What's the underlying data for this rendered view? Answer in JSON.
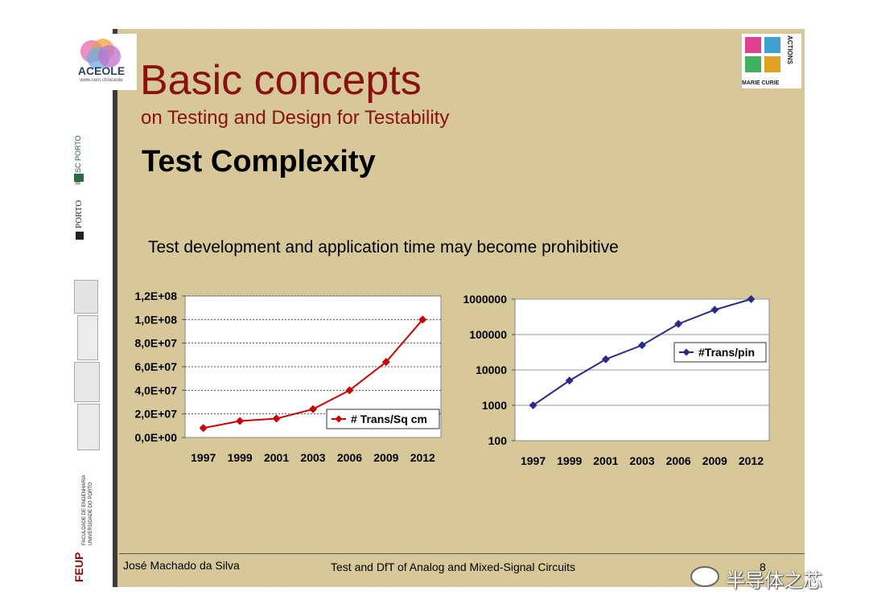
{
  "slide": {
    "title": "Basic concepts",
    "subtitle": "on Testing and Design for Testability",
    "heading": "Test Complexity",
    "body_text": "Test development and application time may become prohibitive"
  },
  "logos": {
    "aceole_name": "ACEOLE",
    "aceole_url": "www.cern.ch/aceole",
    "inesc": "INESC PORTO",
    "uporto": "PORTO",
    "feup": "FEUP",
    "feup_sub1": "FACULDADE DE ENGENHARIA",
    "feup_sub2": "UNIVERSIDADE DO PORTO",
    "marie_curie": "MARIE CURIE",
    "actions": "ACTIONS"
  },
  "footer": {
    "author": "José Machado da Silva",
    "course": "Test and DfT of Analog and Mixed-Signal Circuits",
    "page": "8"
  },
  "watermark": "半导体之芯",
  "colors": {
    "slide_bg": "#d6c898",
    "title": "#8b1010",
    "line_red": "#cc0000",
    "line_blue": "#2a2a8c"
  },
  "chart_data": [
    {
      "type": "line",
      "categories": [
        "1997",
        "1999",
        "2001",
        "2003",
        "2006",
        "2009",
        "2012"
      ],
      "series": [
        {
          "name": "# Trans/Sq cm",
          "values": [
            8000000,
            14000000,
            16000000,
            24000000,
            40000000,
            64000000,
            100000000
          ]
        }
      ],
      "yticks": [
        "0,0E+00",
        "2,0E+07",
        "4,0E+07",
        "6,0E+07",
        "8,0E+07",
        "1,0E+08",
        "1,2E+08"
      ],
      "ylim": [
        0,
        120000000
      ],
      "ytick_step": 20000000,
      "yscale": "linear",
      "grid": "horizontal dotted",
      "legend": "lower-right",
      "color": "#cc0000",
      "marker": "diamond"
    },
    {
      "type": "line",
      "categories": [
        "1997",
        "1999",
        "2001",
        "2003",
        "2006",
        "2009",
        "2012"
      ],
      "series": [
        {
          "name": "#Trans/pin",
          "values": [
            1000,
            5000,
            20000,
            50000,
            200000,
            500000,
            1000000
          ]
        }
      ],
      "yticks": [
        "100",
        "1000",
        "10000",
        "100000",
        "1000000"
      ],
      "ylim": [
        100,
        1000000
      ],
      "yscale": "log",
      "grid": "horizontal",
      "legend": "upper-right",
      "color": "#2a2a8c",
      "marker": "diamond"
    }
  ]
}
